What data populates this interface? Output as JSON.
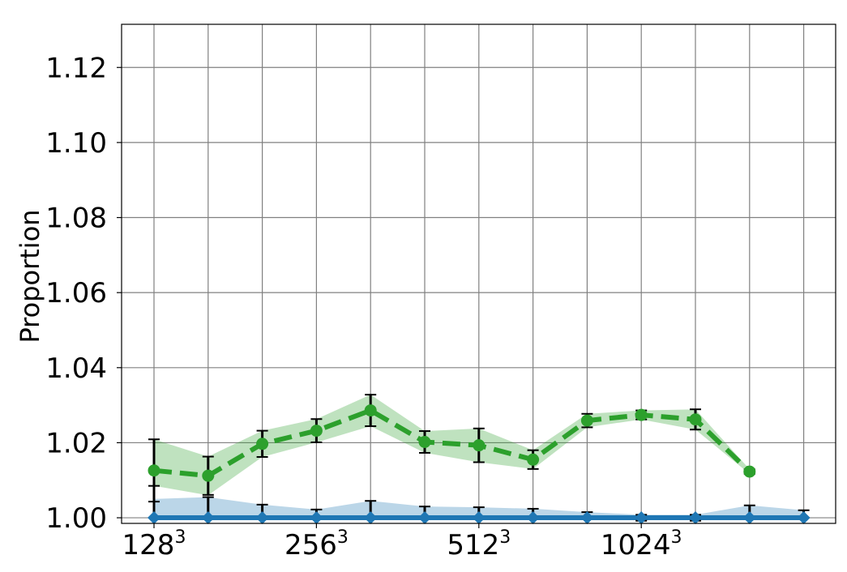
{
  "chart_data": {
    "type": "line",
    "ylabel": "Proportion",
    "xlabel": "",
    "ylim": [
      0.9985,
      1.1315
    ],
    "yticks": [
      1.0,
      1.02,
      1.04,
      1.06,
      1.08,
      1.1,
      1.12
    ],
    "ytick_labels": [
      "1.00",
      "1.02",
      "1.04",
      "1.06",
      "1.08",
      "1.10",
      "1.12"
    ],
    "x_points": 13,
    "xtick_labels": [
      {
        "index": 0,
        "base": "128",
        "exp": "3"
      },
      {
        "index": 3,
        "base": "256",
        "exp": "3"
      },
      {
        "index": 6,
        "base": "512",
        "exp": "3"
      },
      {
        "index": 9,
        "base": "1024",
        "exp": "3"
      }
    ],
    "grid": true,
    "series": [
      {
        "color": "#2ca02c",
        "band_color": "#2ca02c",
        "style": "dashed",
        "marker": "circle",
        "values": [
          1.0126,
          1.0112,
          1.0197,
          1.0232,
          1.0286,
          1.0202,
          1.0193,
          1.0155,
          1.0259,
          1.0274,
          1.0262,
          1.0123,
          null
        ],
        "err": [
          0.0083,
          0.0051,
          0.0035,
          0.0031,
          0.0042,
          0.0029,
          0.0045,
          0.0025,
          0.0018,
          0.0012,
          0.0027,
          0.0006,
          null
        ],
        "band_low": [
          1.0085,
          1.006,
          1.0162,
          1.0201,
          1.0244,
          1.0173,
          1.0148,
          1.013,
          1.0241,
          1.0262,
          1.0235,
          1.0117,
          null
        ],
        "band_high": [
          1.0209,
          1.0163,
          1.0232,
          1.0263,
          1.0328,
          1.0231,
          1.0238,
          1.018,
          1.0277,
          1.0286,
          1.0289,
          1.0129,
          null
        ]
      },
      {
        "color": "#1f77b4",
        "band_color": "#1f77b4",
        "style": "solid",
        "marker": "diamond",
        "values": [
          1.0,
          1.0,
          1.0,
          1.0,
          1.0,
          1.0,
          1.0,
          1.0,
          1.0,
          1.0,
          1.0,
          1.0,
          1.0
        ],
        "err": [
          0.0085,
          0.0055,
          0.0035,
          0.0022,
          0.0045,
          0.003,
          0.0028,
          0.0024,
          0.0015,
          0.0008,
          0.0008,
          0.0033,
          0.002
        ],
        "band_low": [
          1.0,
          1.0,
          1.0,
          1.0,
          1.0,
          1.0,
          1.0,
          1.0,
          1.0,
          1.0,
          1.0,
          1.0,
          1.0
        ],
        "band_high": [
          1.005,
          1.0055,
          1.0035,
          1.0022,
          1.0045,
          1.003,
          1.0028,
          1.0024,
          1.0015,
          1.0008,
          1.0008,
          1.0033,
          1.002
        ]
      }
    ]
  }
}
